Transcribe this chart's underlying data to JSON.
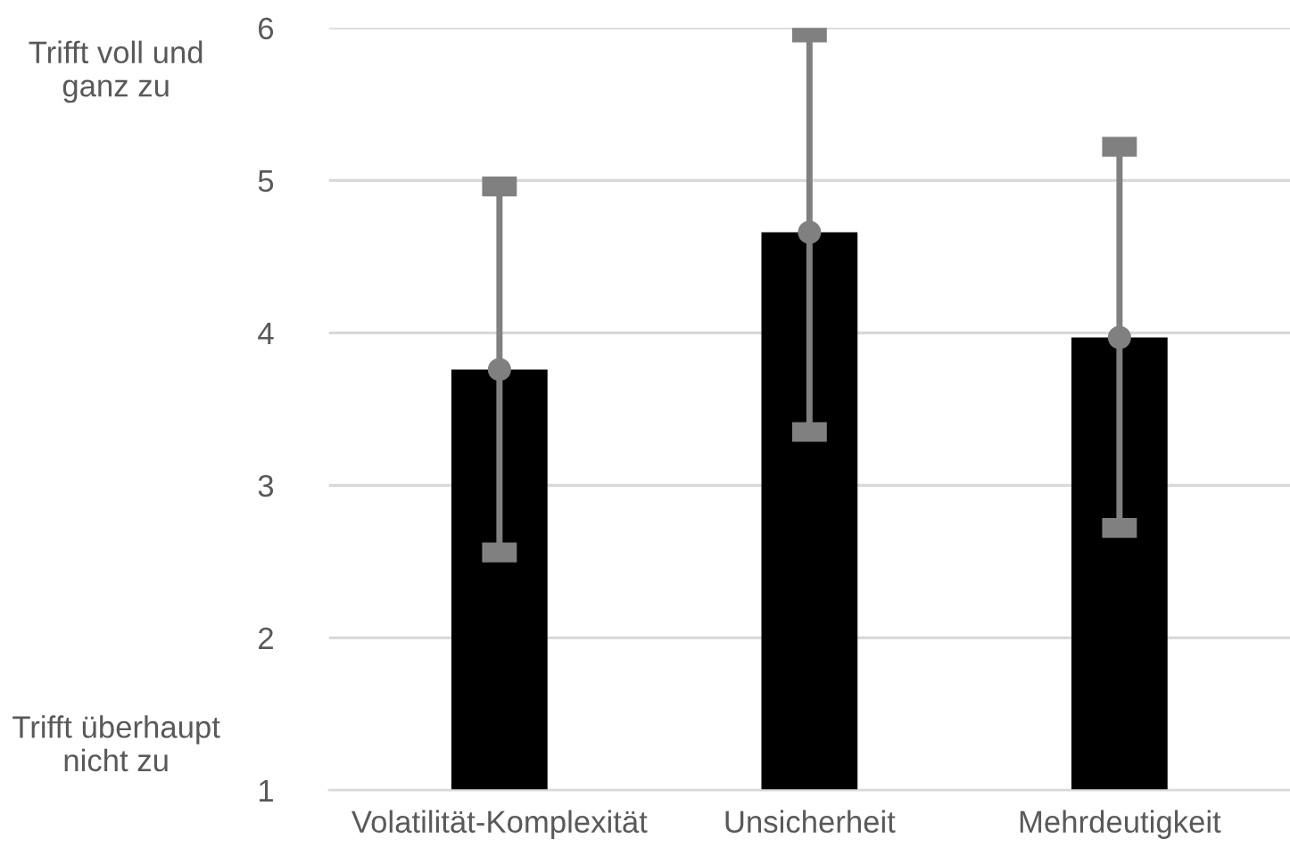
{
  "chart_data": {
    "type": "bar",
    "categories": [
      "Volatilität-Komplexität",
      "Unsicherheit",
      "Mehrdeutigkeit"
    ],
    "series": [
      {
        "color": "#000000",
        "values": [
          3.76,
          4.66,
          3.97
        ]
      },
      {
        "type": "scatter",
        "color": "#808080",
        "x": [
          "Volatilität-Komplexität",
          "Unsicherheit",
          "Mehrdeutigkeit"
        ],
        "values": [
          3.76,
          4.66,
          3.97
        ],
        "errors": [
          1.2,
          1.31,
          1.25
        ]
      }
    ],
    "marker": "circle",
    "ylim": [
      1,
      6
    ],
    "yticks": [
      1,
      2,
      3,
      4,
      5,
      6
    ],
    "grid": "y",
    "annotations": [
      "Trifft voll und ganz zu",
      "Trifft überhaupt nicht zu"
    ]
  }
}
